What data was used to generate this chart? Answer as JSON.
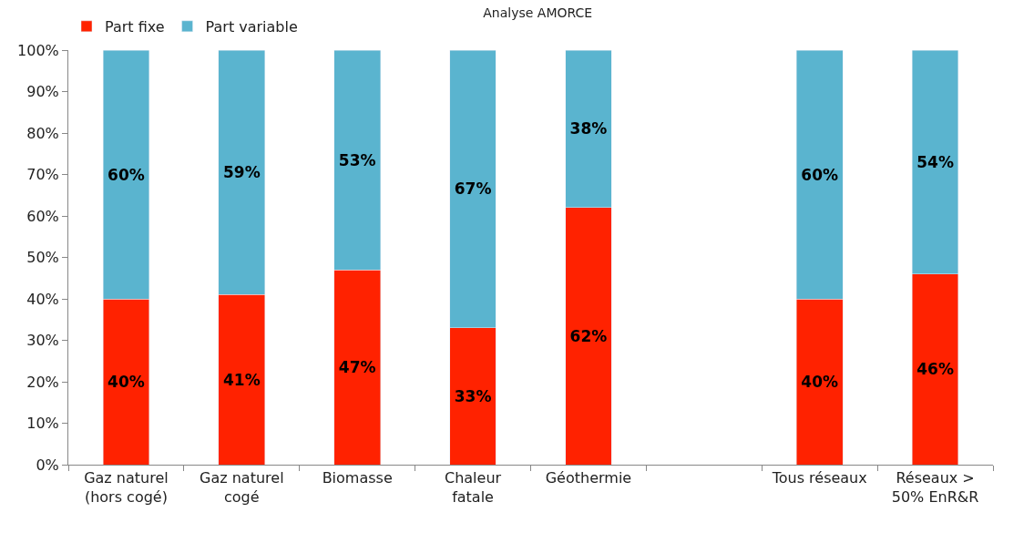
{
  "chart_data": {
    "type": "bar",
    "title": "Analyse AMORCE",
    "stacked": true,
    "categories": [
      "Gaz naturel (hors cogé)",
      "Gaz naturel cogé",
      "Biomasse",
      "Chaleur fatale",
      "Géothermie",
      null,
      "Tous réseaux",
      "Réseaux > 50% EnR&R"
    ],
    "series": [
      {
        "name": "Part fixe",
        "color": "#ff2200",
        "values": [
          40,
          41,
          47,
          33,
          62,
          null,
          40,
          46
        ],
        "value_labels": [
          "40%",
          "41%",
          "47%",
          "33%",
          "62%",
          null,
          "40%",
          "46%"
        ]
      },
      {
        "name": "Part variable",
        "color": "#5ab4cf",
        "values": [
          60,
          59,
          53,
          67,
          38,
          null,
          60,
          54
        ],
        "value_labels": [
          "60%",
          "59%",
          "53%",
          "67%",
          "38%",
          null,
          "60%",
          "54%"
        ]
      }
    ],
    "ylim": [
      0,
      100
    ],
    "yticks": [
      {
        "value": 0,
        "label": "0%"
      },
      {
        "value": 10,
        "label": "10%"
      },
      {
        "value": 20,
        "label": "20%"
      },
      {
        "value": 30,
        "label": "30%"
      },
      {
        "value": 40,
        "label": "40%"
      },
      {
        "value": 50,
        "label": "50%"
      },
      {
        "value": 60,
        "label": "60%"
      },
      {
        "value": 70,
        "label": "70%"
      },
      {
        "value": 80,
        "label": "80%"
      },
      {
        "value": 90,
        "label": "90%"
      },
      {
        "value": 100,
        "label": "100%"
      }
    ],
    "legend": "top left"
  }
}
